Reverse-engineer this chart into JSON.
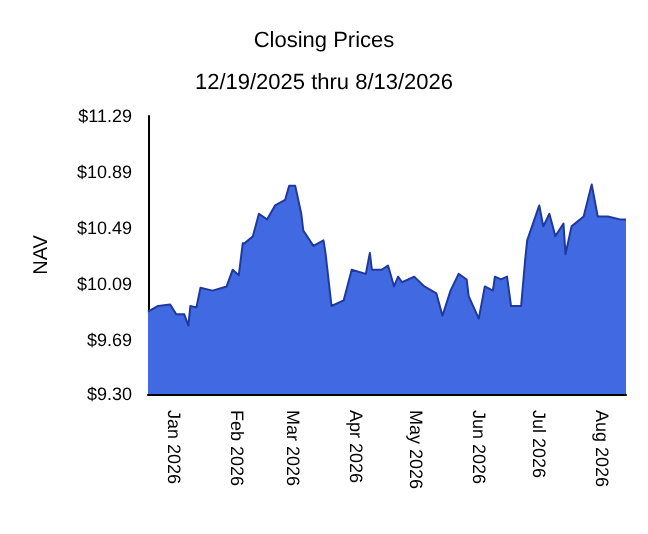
{
  "chart_data": {
    "type": "area",
    "title": "Closing Prices",
    "subtitle": "12/19/2025 thru 8/13/2026",
    "ylabel": "NAV",
    "x": [
      "2025-12-19",
      "2025-12-24",
      "2025-12-30",
      "2026-01-02",
      "2026-01-06",
      "2026-01-08",
      "2026-01-09",
      "2026-01-12",
      "2026-01-14",
      "2026-01-20",
      "2026-01-27",
      "2026-01-30",
      "2026-02-02",
      "2026-02-04",
      "2026-02-05",
      "2026-02-09",
      "2026-02-12",
      "2026-02-16",
      "2026-02-20",
      "2026-02-25",
      "2026-02-27",
      "2026-03-02",
      "2026-03-05",
      "2026-03-06",
      "2026-03-11",
      "2026-03-16",
      "2026-03-17",
      "2026-03-20",
      "2026-03-26",
      "2026-03-30",
      "2026-04-06",
      "2026-04-08",
      "2026-04-09",
      "2026-04-14",
      "2026-04-17",
      "2026-04-20",
      "2026-04-22",
      "2026-04-24",
      "2026-04-30",
      "2026-05-05",
      "2026-05-11",
      "2026-05-14",
      "2026-05-18",
      "2026-05-22",
      "2026-05-26",
      "2026-05-27",
      "2026-06-01",
      "2026-06-04",
      "2026-06-08",
      "2026-06-09",
      "2026-06-12",
      "2026-06-15",
      "2026-06-17",
      "2026-06-22",
      "2026-06-24",
      "2026-06-25",
      "2026-07-01",
      "2026-07-03",
      "2026-07-06",
      "2026-07-09",
      "2026-07-13",
      "2026-07-14",
      "2026-07-17",
      "2026-07-23",
      "2026-07-27",
      "2026-07-30",
      "2026-08-04",
      "2026-08-10",
      "2026-08-13"
    ],
    "series": [
      {
        "color": "#4169e1",
        "values": [
          9.89,
          9.93,
          9.94,
          9.87,
          9.87,
          9.79,
          9.93,
          9.92,
          10.06,
          10.04,
          10.07,
          10.19,
          10.15,
          10.38,
          10.38,
          10.43,
          10.59,
          10.55,
          10.65,
          10.69,
          10.79,
          10.79,
          10.59,
          10.47,
          10.36,
          10.4,
          10.31,
          9.93,
          9.97,
          10.19,
          10.16,
          10.31,
          10.19,
          10.19,
          10.22,
          10.07,
          10.14,
          10.1,
          10.14,
          10.07,
          10.02,
          9.86,
          10.04,
          10.16,
          10.12,
          10.0,
          9.84,
          10.07,
          10.04,
          10.14,
          10.12,
          10.14,
          9.93,
          9.93,
          10.26,
          10.4,
          10.65,
          10.5,
          10.59,
          10.43,
          10.52,
          10.3,
          10.5,
          10.57,
          10.8,
          10.57,
          10.57,
          10.55,
          10.55
        ]
      }
    ],
    "xlim": [
      "2025-12-19",
      "2026-08-13"
    ],
    "xticks": [
      {
        "value": "2026-01-01",
        "label": "Jan 2026"
      },
      {
        "value": "2026-02-01",
        "label": "Feb 2026"
      },
      {
        "value": "2026-03-01",
        "label": "Mar 2026"
      },
      {
        "value": "2026-04-01",
        "label": "Apr 2026"
      },
      {
        "value": "2026-05-01",
        "label": "May 2026"
      },
      {
        "value": "2026-06-01",
        "label": "Jun 2026"
      },
      {
        "value": "2026-07-01",
        "label": "Jul 2026"
      },
      {
        "value": "2026-08-01",
        "label": "Aug 2026"
      }
    ],
    "ylim": [
      9.3,
      11.29
    ],
    "yticks": [
      {
        "value": 9.3,
        "label": "$9.30"
      },
      {
        "value": 9.69,
        "label": "$9.69"
      },
      {
        "value": 10.09,
        "label": "$10.09"
      },
      {
        "value": 10.49,
        "label": "$10.49"
      },
      {
        "value": 10.89,
        "label": "$10.89"
      },
      {
        "value": 11.29,
        "label": "$11.29"
      }
    ],
    "grid": false,
    "marker": "none"
  }
}
